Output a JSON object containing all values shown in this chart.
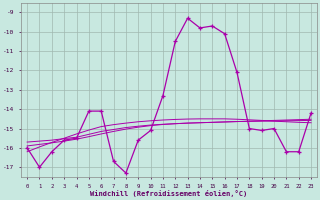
{
  "xlabel": "Windchill (Refroidissement éolien,°C)",
  "background_color": "#c8e8e0",
  "grid_color": "#a0b8b0",
  "line_color": "#aa00aa",
  "hours": [
    0,
    1,
    2,
    3,
    4,
    5,
    6,
    7,
    8,
    9,
    10,
    11,
    12,
    13,
    14,
    15,
    16,
    17,
    18,
    19,
    20,
    21,
    22,
    23
  ],
  "windchill": [
    -16,
    -17,
    -16.2,
    -15.6,
    -15.5,
    -14.1,
    -14.1,
    -16.7,
    -17.3,
    -15.6,
    -15.1,
    -13.3,
    -10.5,
    -9.3,
    -9.8,
    -9.7,
    -10.1,
    -12.1,
    -15.0,
    -15.1,
    -15.0,
    -16.2,
    -16.2,
    -14.2
  ],
  "smooth1": [
    -15.7,
    -15.65,
    -15.6,
    -15.52,
    -15.45,
    -15.3,
    -15.15,
    -15.05,
    -14.95,
    -14.88,
    -14.82,
    -14.78,
    -14.75,
    -14.72,
    -14.7,
    -14.68,
    -14.66,
    -14.64,
    -14.62,
    -14.6,
    -14.58,
    -14.56,
    -14.54,
    -14.52
  ],
  "smooth2": [
    -15.9,
    -15.82,
    -15.74,
    -15.65,
    -15.55,
    -15.42,
    -15.28,
    -15.15,
    -15.03,
    -14.93,
    -14.85,
    -14.79,
    -14.75,
    -14.72,
    -14.7,
    -14.68,
    -14.66,
    -14.64,
    -14.63,
    -14.62,
    -14.61,
    -14.6,
    -14.59,
    -14.58
  ],
  "smooth3": [
    -16.2,
    -15.95,
    -15.72,
    -15.5,
    -15.28,
    -15.08,
    -14.9,
    -14.8,
    -14.72,
    -14.65,
    -14.6,
    -14.56,
    -14.53,
    -14.51,
    -14.5,
    -14.5,
    -14.5,
    -14.52,
    -14.55,
    -14.58,
    -14.62,
    -14.65,
    -14.68,
    -14.7
  ],
  "ylim": [
    -17.5,
    -8.5
  ],
  "yticks": [
    -17,
    -16,
    -15,
    -14,
    -13,
    -12,
    -11,
    -10,
    -9
  ]
}
